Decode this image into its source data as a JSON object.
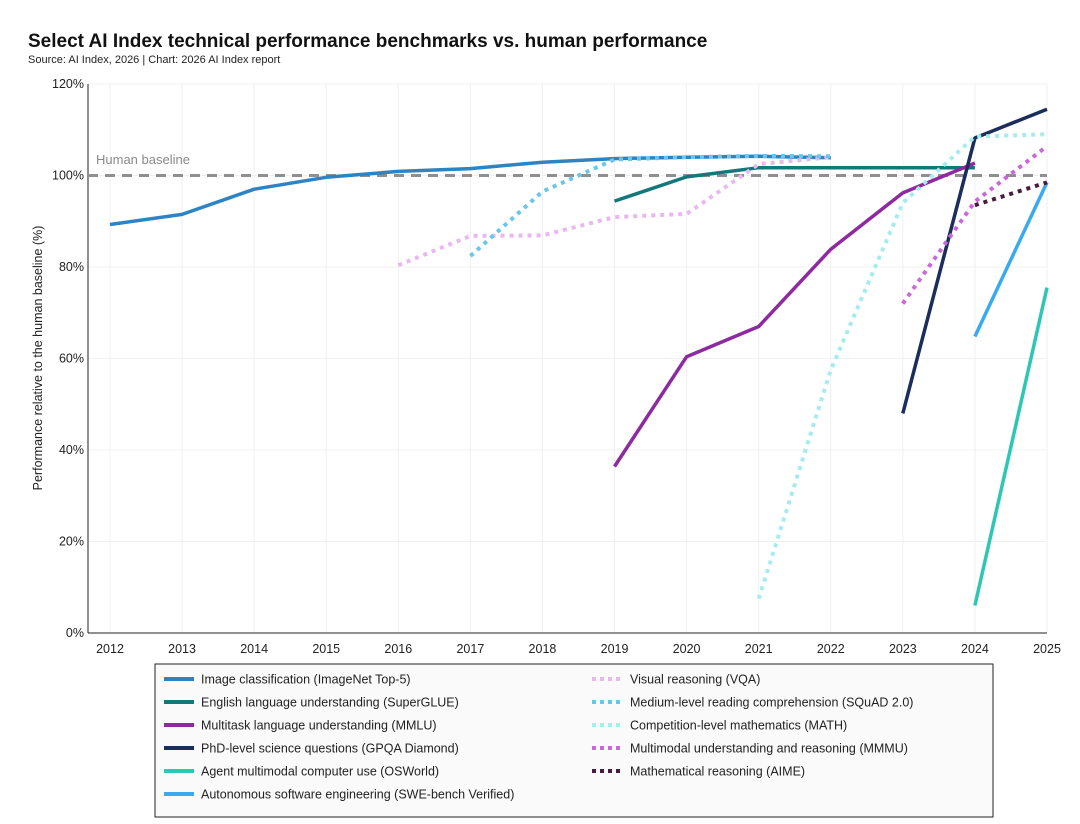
{
  "chart_data": {
    "type": "line",
    "title": "Select AI Index technical performance benchmarks vs. human performance",
    "subtitle": "Source: AI Index, 2026 | Chart: 2026 AI Index report",
    "xlabel": "",
    "ylabel": "Performance relative to the human baseline (%)",
    "xlim": [
      2012,
      2025
    ],
    "ylim": [
      0,
      120
    ],
    "x_ticks": [
      "2012",
      "2013",
      "2014",
      "2015",
      "2016",
      "2017",
      "2018",
      "2019",
      "2020",
      "2021",
      "2022",
      "2023",
      "2024",
      "2025"
    ],
    "y_ticks": [
      "0%",
      "20%",
      "40%",
      "60%",
      "80%",
      "100%",
      "120%"
    ],
    "y_tick_values": [
      0,
      20,
      40,
      60,
      80,
      100,
      120
    ],
    "grid": "vertical and horizontal light",
    "legend_placement": "bottom",
    "reference_line": {
      "label": "Human baseline",
      "value": 100,
      "color": "#8f8f8f"
    },
    "series": [
      {
        "name": "Image classification (ImageNet Top-5)",
        "color": "#2c84c4",
        "dash": "solid",
        "points": [
          [
            2012,
            89.3
          ],
          [
            2013,
            91.5
          ],
          [
            2014,
            97.0
          ],
          [
            2015,
            99.6
          ],
          [
            2016,
            100.9
          ],
          [
            2017,
            101.5
          ],
          [
            2018,
            102.9
          ],
          [
            2019,
            103.7
          ],
          [
            2020,
            104.0
          ],
          [
            2021,
            104.2
          ],
          [
            2022,
            103.9
          ]
        ]
      },
      {
        "name": "English language understanding (SuperGLUE)",
        "color": "#14787a",
        "dash": "solid",
        "points": [
          [
            2019,
            94.4
          ],
          [
            2020,
            99.7
          ],
          [
            2021,
            101.7
          ],
          [
            2022,
            101.7
          ],
          [
            2023,
            101.7
          ],
          [
            2024,
            101.7
          ]
        ]
      },
      {
        "name": "Multitask language understanding (MMLU)",
        "color": "#8e2aa0",
        "dash": "solid",
        "points": [
          [
            2019,
            36.4
          ],
          [
            2020,
            60.4
          ],
          [
            2021,
            67.0
          ],
          [
            2022,
            83.9
          ],
          [
            2023,
            96.2
          ],
          [
            2024,
            102.7
          ]
        ]
      },
      {
        "name": "PhD-level science questions (GPQA Diamond)",
        "color": "#1b2d5b",
        "dash": "solid",
        "points": [
          [
            2023,
            48.0
          ],
          [
            2024,
            108.2
          ],
          [
            2025,
            114.5
          ]
        ]
      },
      {
        "name": "Agent multimodal computer use (OSWorld)",
        "color": "#2ec6b4",
        "dash": "solid",
        "points": [
          [
            2024,
            6.0
          ],
          [
            2025,
            75.5
          ]
        ]
      },
      {
        "name": "Autonomous software engineering (SWE-bench Verified)",
        "color": "#3aaaf0",
        "dash": "solid",
        "points": [
          [
            2024,
            64.8
          ],
          [
            2025,
            98.5
          ]
        ]
      },
      {
        "name": "Visual reasoning (VQA)",
        "color": "#e9b8f0",
        "dash": "dotted",
        "points": [
          [
            2016,
            80.4
          ],
          [
            2017,
            86.8
          ],
          [
            2018,
            86.9
          ],
          [
            2019,
            90.9
          ],
          [
            2020,
            91.6
          ],
          [
            2021,
            102.5
          ],
          [
            2022,
            104.0
          ]
        ]
      },
      {
        "name": "Medium-level reading comprehension (SQuAD 2.0)",
        "color": "#6ac6ea",
        "dash": "dotted",
        "points": [
          [
            2017,
            82.4
          ],
          [
            2018,
            96.5
          ],
          [
            2019,
            103.5
          ],
          [
            2020,
            104.0
          ],
          [
            2021,
            104.3
          ],
          [
            2022,
            104.2
          ]
        ]
      },
      {
        "name": "Competition-level mathematics (MATH)",
        "color": "#a6ecef",
        "dash": "dotted",
        "points": [
          [
            2021,
            7.5
          ],
          [
            2022,
            57.5
          ],
          [
            2023,
            94.0
          ],
          [
            2024,
            108.5
          ],
          [
            2025,
            109.0
          ]
        ]
      },
      {
        "name": "Multimodal understanding and reasoning (MMMU)",
        "color": "#cc66dd",
        "dash": "dotted",
        "points": [
          [
            2023,
            72.0
          ],
          [
            2024,
            94.3
          ],
          [
            2025,
            106.4
          ]
        ]
      },
      {
        "name": "Mathematical reasoning (AIME)",
        "color": "#4b1a40",
        "dash": "dotted",
        "points": [
          [
            2024,
            93.5
          ],
          [
            2025,
            98.5
          ]
        ]
      }
    ]
  }
}
